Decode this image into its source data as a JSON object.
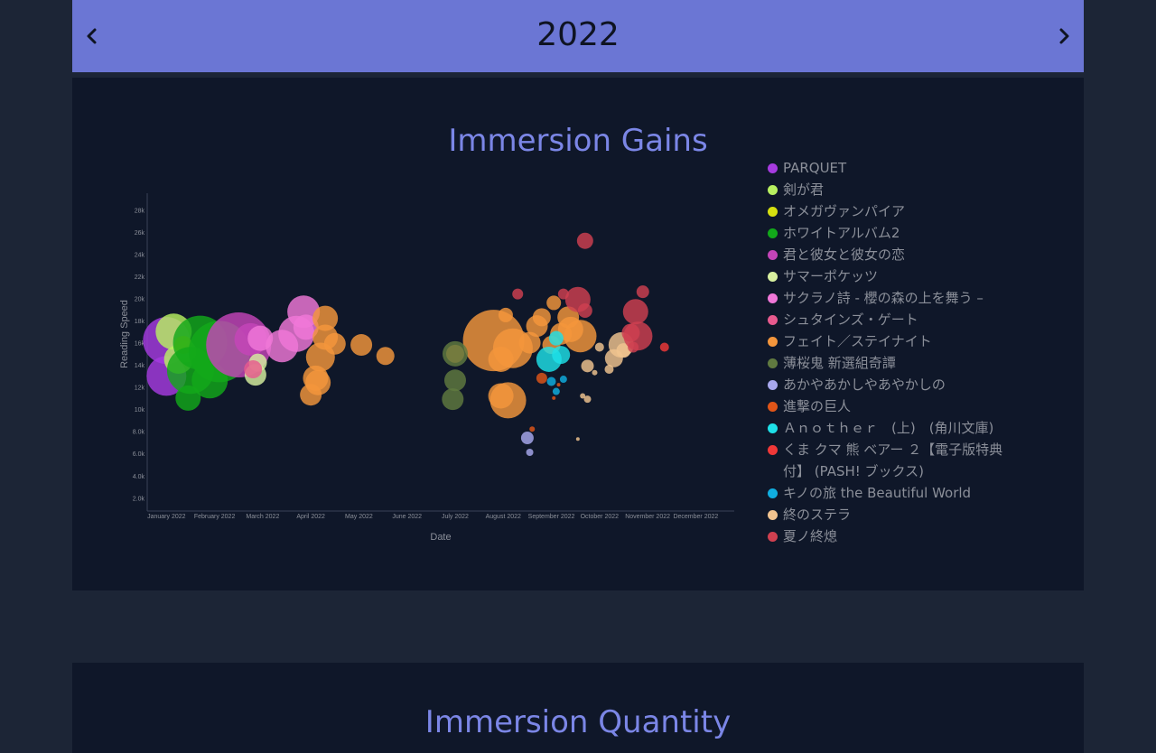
{
  "header": {
    "year": "2022",
    "prev_icon": "chevron-left-icon",
    "next_icon": "chevron-right-icon"
  },
  "second_panel": {
    "title": "Immersion Quantity"
  },
  "chart_data": {
    "type": "scatter",
    "title": "Immersion Gains",
    "xlabel": "Date",
    "ylabel": "Reading Speed",
    "x_ticks": [
      "January 2022",
      "February 2022",
      "March 2022",
      "April 2022",
      "May 2022",
      "June 2022",
      "July 2022",
      "August 2022",
      "September 2022",
      "October 2022",
      "November 2022",
      "December 2022"
    ],
    "y_ticks": [
      "2.0k",
      "4.0k",
      "6.0k",
      "8.0k",
      "10k",
      "12k",
      "14k",
      "16k",
      "18k",
      "20k",
      "22k",
      "24k",
      "26k",
      "28k"
    ],
    "xlim_month": [
      -0.4,
      11.8
    ],
    "ylim": [
      800,
      29500
    ],
    "series": [
      {
        "name": "PARQUET",
        "color": "#a63be0",
        "points": [
          [
            0.0,
            16200,
            26
          ],
          [
            0.0,
            13000,
            22
          ],
          [
            0.3,
            15500,
            12
          ]
        ]
      },
      {
        "name": "剣が君",
        "color": "#b8f060",
        "points": [
          [
            0.15,
            17000,
            20
          ],
          [
            0.25,
            14500,
            16
          ],
          [
            0.4,
            15200,
            12
          ]
        ]
      },
      {
        "name": "オメガヴァンパイア",
        "color": "#d6e010",
        "points": [
          [
            0.35,
            15800,
            10
          ]
        ]
      },
      {
        "name": "ホワイトアルバム2",
        "color": "#12a81a",
        "points": [
          [
            0.7,
            16000,
            30
          ],
          [
            1.1,
            15200,
            34
          ],
          [
            0.5,
            13500,
            26
          ],
          [
            0.45,
            11000,
            14
          ],
          [
            0.9,
            12600,
            20
          ]
        ]
      },
      {
        "name": "君と彼女と彼女の恋",
        "color": "#c444b8",
        "points": [
          [
            1.5,
            15800,
            36
          ],
          [
            1.75,
            16300,
            18
          ]
        ]
      },
      {
        "name": "サマーポケッツ",
        "color": "#d8f0a0",
        "points": [
          [
            1.85,
            13100,
            12
          ],
          [
            1.9,
            14200,
            10
          ]
        ]
      },
      {
        "name": "サクラノ詩 - 櫻の森の上を舞う –",
        "color": "#f077d8",
        "points": [
          [
            1.95,
            16400,
            14
          ],
          [
            2.4,
            15700,
            18
          ],
          [
            2.7,
            16800,
            20
          ],
          [
            2.85,
            18800,
            18
          ],
          [
            2.9,
            17400,
            14
          ]
        ]
      },
      {
        "name": "シュタインズ・ゲート",
        "color": "#e85a8e",
        "points": [
          [
            1.8,
            13600,
            10
          ]
        ]
      },
      {
        "name": "フェイト／ステイナイト",
        "color": "#f4963c",
        "points": [
          [
            3.3,
            18200,
            14
          ],
          [
            3.3,
            16500,
            14
          ],
          [
            3.5,
            15900,
            12
          ],
          [
            3.2,
            14700,
            16
          ],
          [
            3.15,
            12400,
            14
          ],
          [
            3.0,
            11300,
            12
          ],
          [
            3.1,
            12800,
            14
          ],
          [
            4.05,
            15800,
            12
          ],
          [
            4.55,
            14800,
            10
          ],
          [
            6.8,
            16200,
            34
          ],
          [
            6.95,
            14500,
            14
          ],
          [
            7.2,
            15500,
            22
          ],
          [
            7.55,
            16000,
            12
          ],
          [
            7.7,
            17500,
            12
          ],
          [
            7.1,
            10800,
            20
          ],
          [
            6.95,
            11200,
            14
          ],
          [
            7.05,
            18500,
            8
          ],
          [
            7.8,
            18300,
            10
          ],
          [
            8.35,
            18300,
            12
          ],
          [
            8.2,
            16800,
            12
          ],
          [
            8.6,
            16600,
            18
          ],
          [
            8.0,
            15800,
            10
          ],
          [
            8.05,
            19600,
            8
          ],
          [
            8.4,
            17200,
            14
          ],
          [
            6.0,
            15000,
            10
          ]
        ]
      },
      {
        "name": "薄桜鬼 新選組奇譚",
        "color": "#607a40",
        "points": [
          [
            6.0,
            15000,
            14
          ],
          [
            6.0,
            12600,
            12
          ],
          [
            5.95,
            10900,
            12
          ]
        ]
      },
      {
        "name": "あかやあかしやあやかしの",
        "color": "#a8a8ee",
        "points": [
          [
            7.5,
            7400,
            7
          ],
          [
            7.55,
            6100,
            4
          ]
        ]
      },
      {
        "name": "進撃の巨人",
        "color": "#e05518",
        "points": [
          [
            7.8,
            12800,
            6
          ],
          [
            7.6,
            8200,
            3
          ],
          [
            8.05,
            11000,
            2
          ],
          [
            8.15,
            12200,
            2
          ]
        ]
      },
      {
        "name": "Ａｎｏｔｈｅｒ　(上)　(角川文庫)",
        "color": "#1ee0e8",
        "points": [
          [
            7.95,
            14500,
            14
          ],
          [
            8.2,
            14900,
            10
          ],
          [
            8.1,
            16400,
            8
          ]
        ]
      },
      {
        "name": "くま クマ 熊 ベアー ２【電子版特典付】 (PASH! ブックス)",
        "color": "#f03838",
        "points": [
          [
            10.35,
            15600,
            5
          ]
        ]
      },
      {
        "name": "キノの旅 the Beautiful World",
        "color": "#10aee0",
        "points": [
          [
            8.0,
            12500,
            5
          ],
          [
            8.1,
            11600,
            4
          ],
          [
            8.25,
            12700,
            4
          ]
        ]
      },
      {
        "name": "終のステラ",
        "color": "#f2c490",
        "points": [
          [
            9.45,
            15800,
            14
          ],
          [
            9.3,
            14600,
            10
          ],
          [
            9.0,
            15600,
            5
          ],
          [
            8.75,
            13900,
            7
          ],
          [
            9.2,
            13600,
            5
          ],
          [
            8.9,
            13300,
            3
          ],
          [
            8.65,
            11200,
            3
          ],
          [
            8.75,
            10900,
            4
          ],
          [
            8.55,
            7300,
            2
          ],
          [
            9.5,
            15300,
            8
          ]
        ]
      },
      {
        "name": "夏ノ終熄",
        "color": "#d04050",
        "points": [
          [
            9.75,
            18800,
            14
          ],
          [
            9.8,
            16600,
            16
          ],
          [
            9.65,
            16900,
            10
          ],
          [
            9.9,
            20600,
            7
          ],
          [
            9.7,
            15600,
            6
          ],
          [
            8.7,
            25200,
            9
          ],
          [
            8.25,
            20400,
            6
          ],
          [
            8.55,
            19900,
            14
          ],
          [
            8.7,
            18900,
            8
          ],
          [
            7.3,
            20400,
            6
          ]
        ]
      }
    ]
  }
}
